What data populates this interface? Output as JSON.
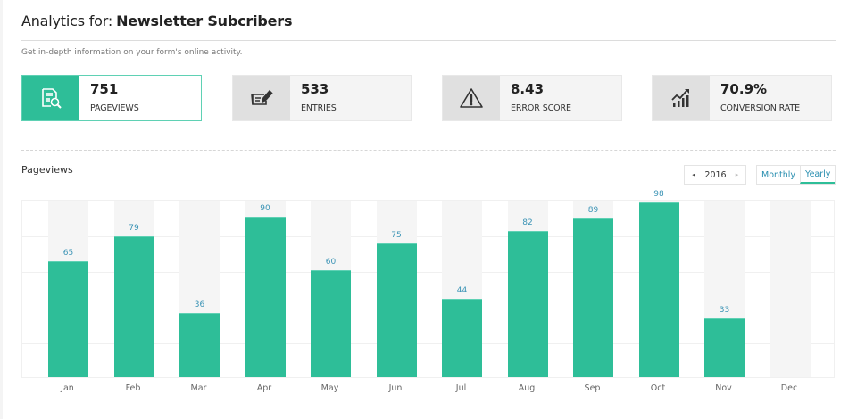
{
  "header": {
    "title_prefix": "Analytics for:",
    "form_name": "Newsletter Subcribers",
    "subtitle": "Get in-depth information on your form's online activity."
  },
  "stats": [
    {
      "value": "751",
      "label": "PAGEVIEWS",
      "icon": "pageviews-search-document-icon",
      "active": true
    },
    {
      "value": "533",
      "label": "ENTRIES",
      "icon": "entries-form-pencil-icon",
      "active": false
    },
    {
      "value": "8.43",
      "label": "ERROR SCORE",
      "icon": "warning-triangle-icon",
      "active": false
    },
    {
      "value": "70.9%",
      "label": "CONVERSION RATE",
      "icon": "trend-chart-icon",
      "active": false
    }
  ],
  "section": {
    "title": "Pageviews"
  },
  "year_nav": {
    "prev_icon": "◂",
    "year": "2016",
    "next_icon": "▸"
  },
  "view_toggle": {
    "options": [
      "Monthly",
      "Yearly"
    ],
    "selected": "Yearly"
  },
  "colors": {
    "accent": "#2ebe98",
    "value_label": "#3a93b5",
    "column_bg": "#f5f5f5"
  },
  "chart_data": {
    "type": "bar",
    "title": "Pageviews",
    "categories": [
      "Jan",
      "Feb",
      "Mar",
      "Apr",
      "May",
      "Jun",
      "Jul",
      "Aug",
      "Sep",
      "Oct",
      "Nov",
      "Dec"
    ],
    "values": [
      65,
      79,
      36,
      90,
      60,
      75,
      44,
      82,
      89,
      98,
      33,
      null
    ],
    "data_labels": [
      "65",
      "79",
      "36",
      "90",
      "60",
      "75",
      "44",
      "82",
      "89",
      "98",
      "33",
      ""
    ],
    "xlabel": "",
    "ylabel": "",
    "ylim": [
      0,
      100
    ],
    "grid": true,
    "gridline_step": 20,
    "legend": null,
    "year": "2016"
  }
}
